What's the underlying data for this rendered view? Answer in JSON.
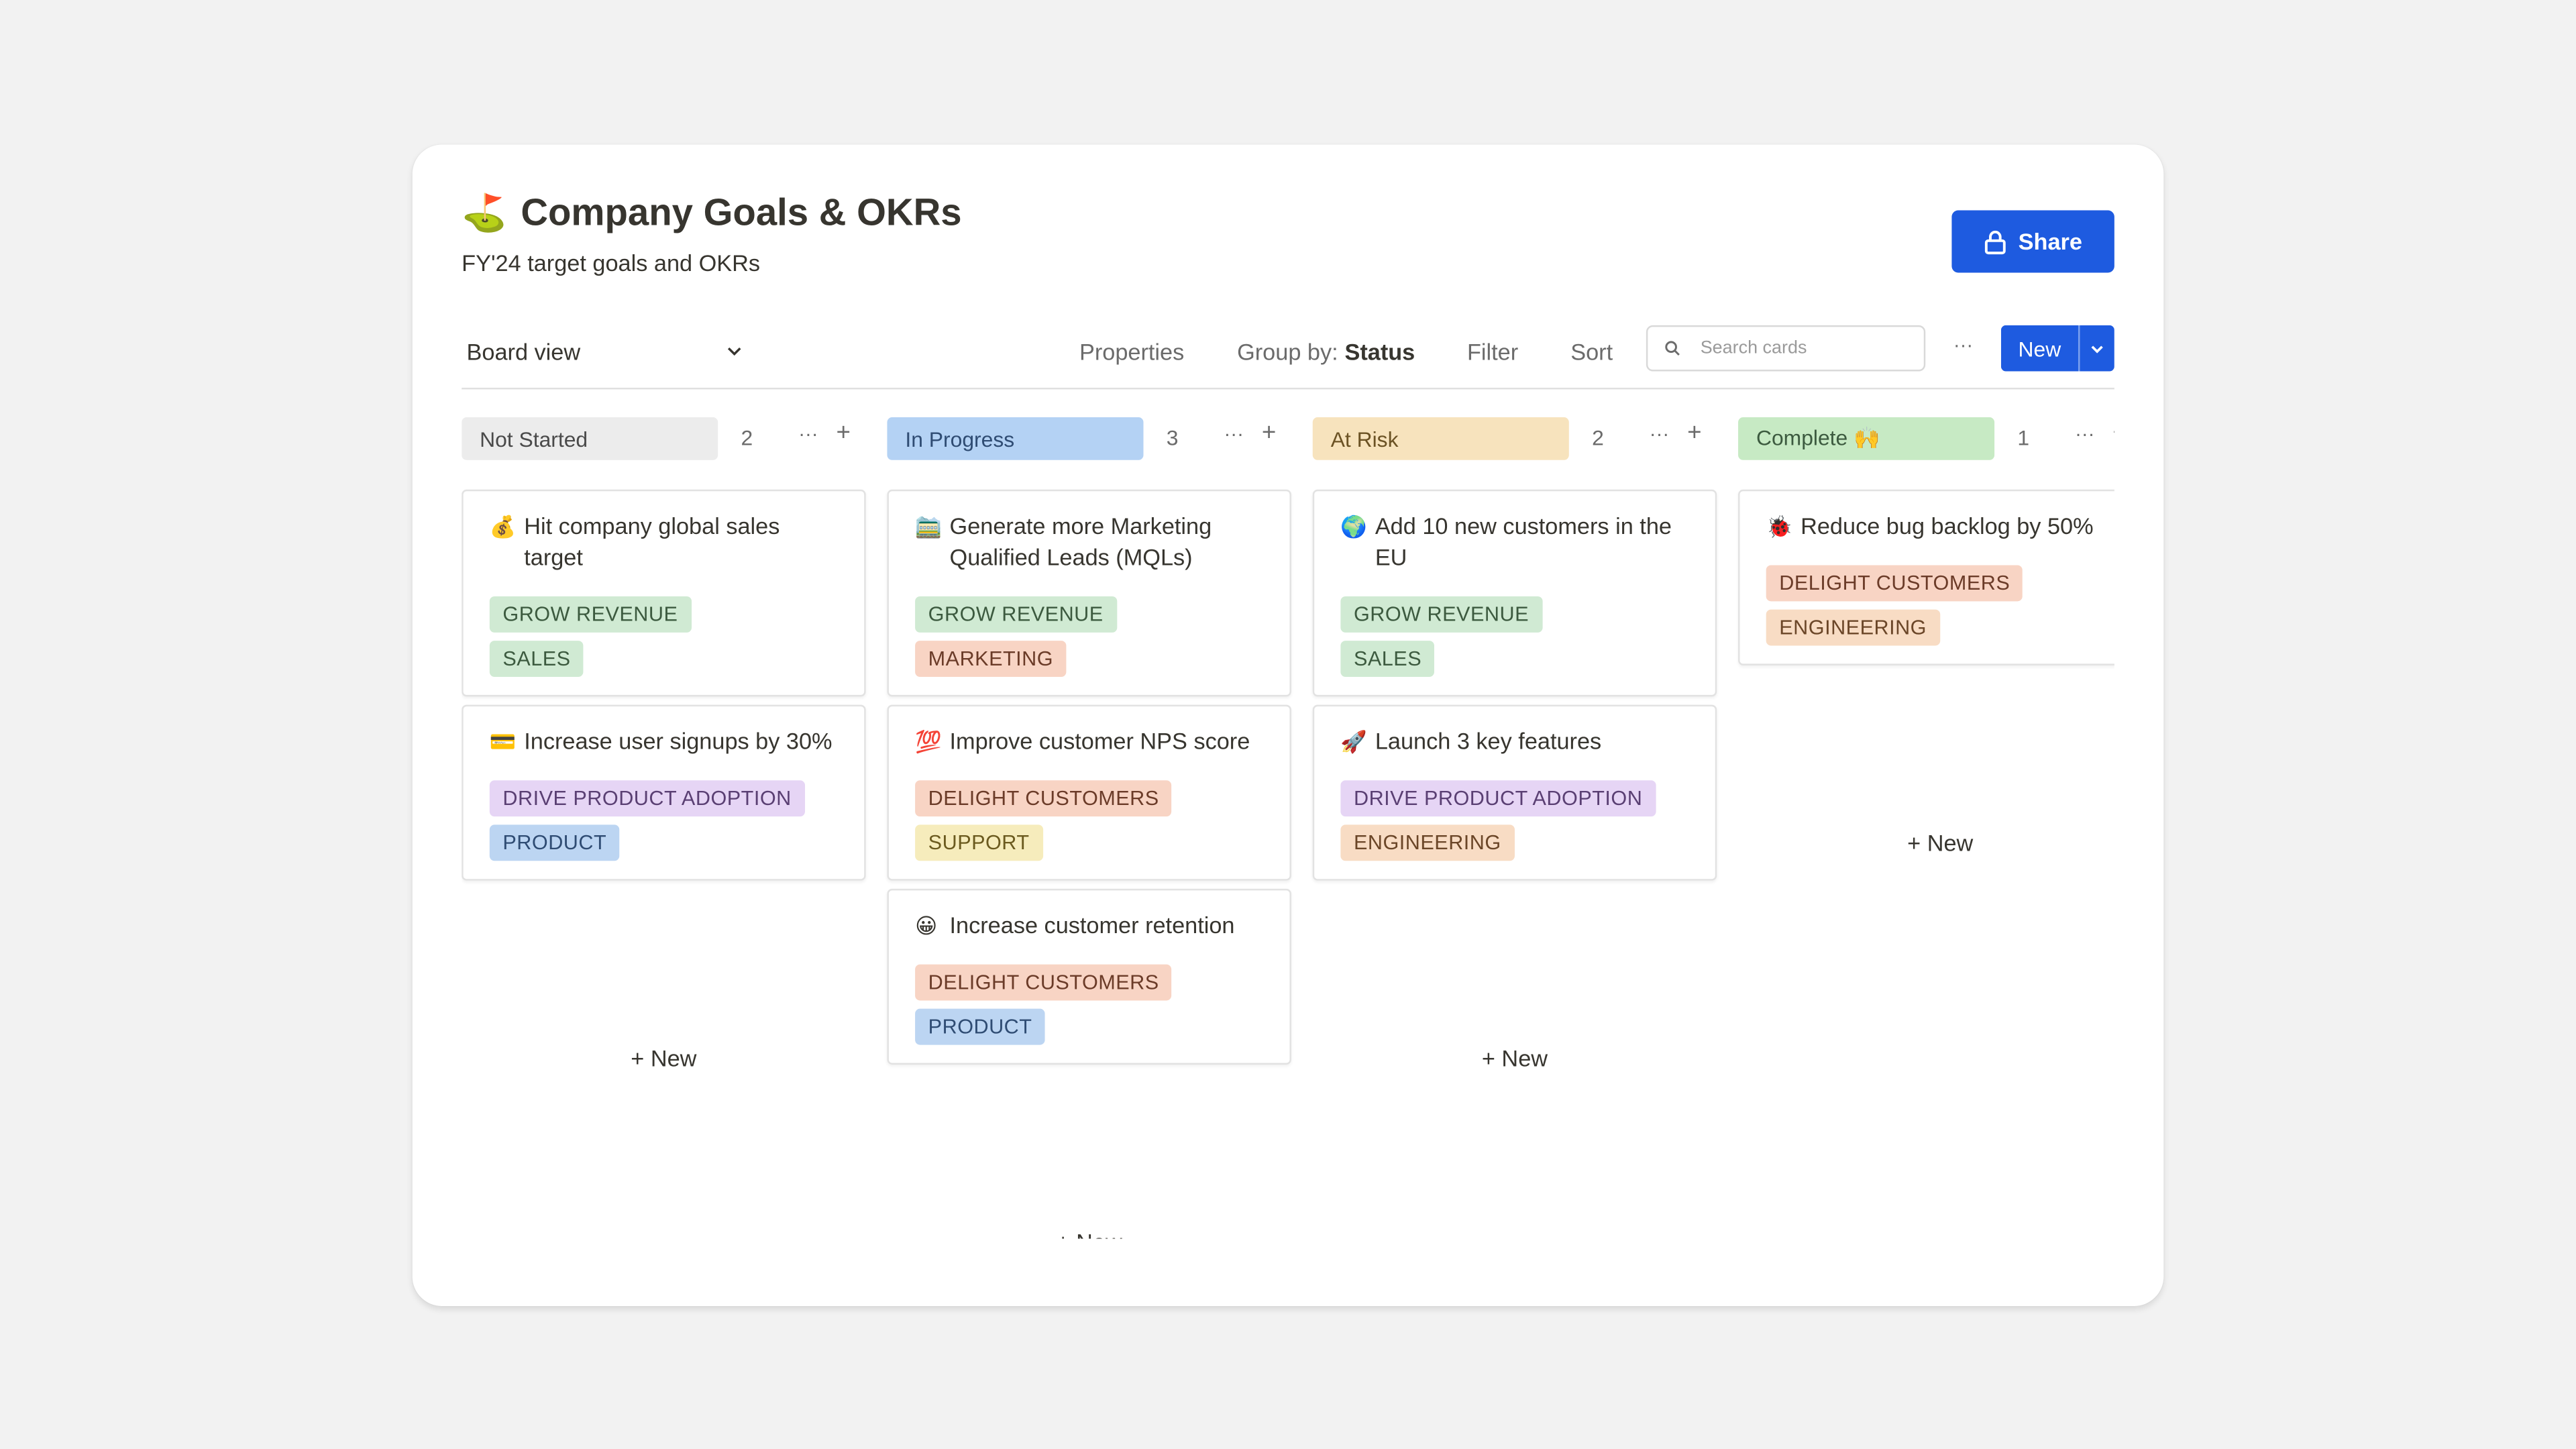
{
  "board": {
    "emoji": "⛳️",
    "title": "Company Goals & OKRs",
    "subtitle": "FY'24 target goals and OKRs",
    "share_label": "Share"
  },
  "toolbar": {
    "view_label": "Board view",
    "properties_label": "Properties",
    "group_by_label": "Group by:",
    "group_by_value": "Status",
    "filter_label": "Filter",
    "sort_label": "Sort",
    "search_placeholder": "Search cards",
    "more_label": "···",
    "new_label": "New"
  },
  "tag_colors": {
    "GROW REVENUE": {
      "bg": "#d0ead3",
      "fg": "#3c5a3f"
    },
    "SALES": {
      "bg": "#d0ead3",
      "fg": "#3c5a3f"
    },
    "MARKETING": {
      "bg": "#f8d4c4",
      "fg": "#6b3b28"
    },
    "DRIVE PRODUCT ADOPTION": {
      "bg": "#e6d5f5",
      "fg": "#5a3f73"
    },
    "PRODUCT": {
      "bg": "#bcd5f2",
      "fg": "#2f4c73"
    },
    "DELIGHT CUSTOMERS": {
      "bg": "#f8d4c4",
      "fg": "#6b3b28"
    },
    "SUPPORT": {
      "bg": "#f6ecbc",
      "fg": "#6b5a1f"
    },
    "ENGINEERING": {
      "bg": "#f8dcc4",
      "fg": "#6b4628"
    }
  },
  "columns": [
    {
      "status": "Not Started",
      "color": "#ececec",
      "text_color": "#4a4a4a",
      "count": "2",
      "more": "···",
      "add": "+",
      "add_new_label": "+ New",
      "cards": [
        {
          "emoji": "💰",
          "title": "Hit company global sales target",
          "tags": [
            "GROW REVENUE",
            "SALES"
          ]
        },
        {
          "emoji": "💳",
          "title": "Increase user signups by 30%",
          "tags": [
            "DRIVE PRODUCT ADOPTION",
            "PRODUCT"
          ]
        }
      ]
    },
    {
      "status": "In Progress",
      "color": "#b4d2f4",
      "text_color": "#2f4c73",
      "count": "3",
      "more": "···",
      "add": "+",
      "add_new_label": "+ New",
      "cards": [
        {
          "emoji": "🚞",
          "title": "Generate more Marketing Qualified Leads (MQLs)",
          "tags": [
            "GROW REVENUE",
            "MARKETING"
          ]
        },
        {
          "emoji": "💯",
          "title": "Improve customer NPS score",
          "tags": [
            "DELIGHT CUSTOMERS",
            "SUPPORT"
          ]
        },
        {
          "emoji": "😀",
          "title": "Increase customer retention",
          "tags": [
            "DELIGHT CUSTOMERS",
            "PRODUCT"
          ]
        }
      ]
    },
    {
      "status": "At Risk",
      "color": "#f7e3bd",
      "text_color": "#6b5224",
      "count": "2",
      "more": "···",
      "add": "+",
      "add_new_label": "+ New",
      "cards": [
        {
          "emoji": "🌍",
          "title": "Add 10 new customers in the EU",
          "tags": [
            "GROW REVENUE",
            "SALES"
          ]
        },
        {
          "emoji": "🚀",
          "title": "Launch 3 key features",
          "tags": [
            "DRIVE PRODUCT ADOPTION",
            "ENGINEERING"
          ]
        }
      ]
    },
    {
      "status": "Complete 🙌",
      "color": "#c7eac4",
      "text_color": "#3c5a3f",
      "count": "1",
      "more": "···",
      "add": "+",
      "add_new_label": "+ New",
      "cards": [
        {
          "emoji": "🐞",
          "title": "Reduce bug backlog by 50%",
          "tags": [
            "DELIGHT CUSTOMERS",
            "ENGINEERING"
          ]
        }
      ]
    }
  ]
}
